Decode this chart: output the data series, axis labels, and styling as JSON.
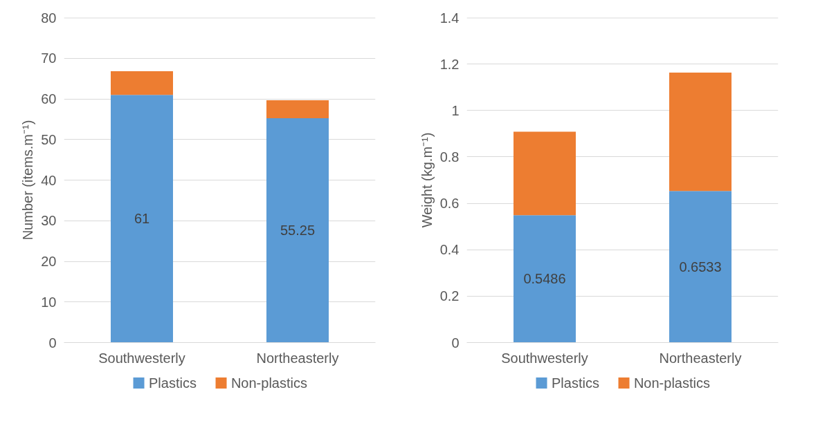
{
  "chart_data": [
    {
      "type": "bar",
      "stacked": true,
      "ylabel": "Number (items.m⁻¹)",
      "categories": [
        "Southwesterly",
        "Northeasterly"
      ],
      "ylim": [
        0,
        80
      ],
      "yticks": [
        0,
        10,
        20,
        30,
        40,
        50,
        60,
        70,
        80
      ],
      "grid": "y",
      "legend": "bottom",
      "series": [
        {
          "name": "Plastics",
          "color": "#5b9bd5",
          "values": [
            61,
            55.25
          ],
          "value_labels": [
            "61",
            "55.25"
          ]
        },
        {
          "name": "Non-plastics",
          "color": "#ed7d31",
          "values": [
            5.8,
            4.4
          ]
        }
      ]
    },
    {
      "type": "bar",
      "stacked": true,
      "ylabel": "Weight (kg.m⁻¹)",
      "categories": [
        "Southwesterly",
        "Northeasterly"
      ],
      "ylim": [
        0,
        1.4
      ],
      "yticks": [
        0,
        0.2,
        0.4,
        0.6,
        0.8,
        {
          "value": 1,
          "label": "1"
        },
        1.2,
        1.4
      ],
      "grid": "y",
      "legend": "bottom",
      "series": [
        {
          "name": "Plastics",
          "color": "#5b9bd5",
          "values": [
            0.5486,
            0.6533
          ],
          "value_labels": [
            "0.5486",
            "0.6533"
          ]
        },
        {
          "name": "Non-plastics",
          "color": "#ed7d31",
          "values": [
            0.36,
            0.51
          ]
        }
      ]
    }
  ]
}
